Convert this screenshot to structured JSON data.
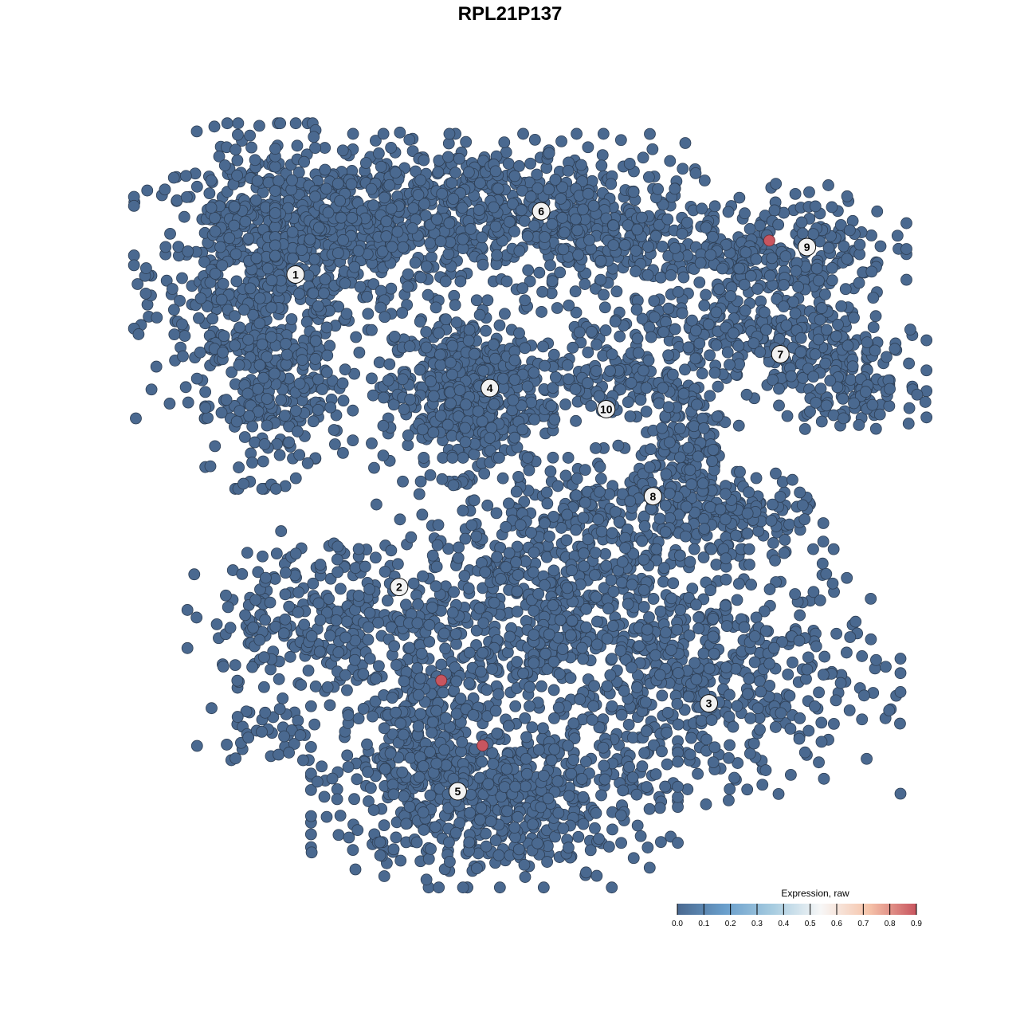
{
  "chart_data": {
    "type": "scatter",
    "title": "RPL21P137",
    "xlabel": "",
    "ylabel": "",
    "axes_visible": false,
    "grid": false,
    "xlim": [
      -40,
      40
    ],
    "ylim": [
      -40,
      40
    ],
    "point_color_low": "#4a6990",
    "point_color_high": "#c8555f",
    "cluster_point_distribution": [
      {
        "cluster": "1",
        "center": [
          -27.0,
          26.1
        ],
        "spread": [
          6.1,
          7.0
        ],
        "n": 600
      },
      {
        "cluster": "1",
        "center": [
          -16.5,
          31.3
        ],
        "spread": [
          7.0,
          4.3
        ],
        "n": 400
      },
      {
        "cluster": "1",
        "center": [
          -25.2,
          12.2
        ],
        "spread": [
          3.5,
          4.3
        ],
        "n": 200
      },
      {
        "cluster": "6",
        "center": [
          -1.7,
          33.0
        ],
        "spread": [
          10.4,
          3.5
        ],
        "n": 500
      },
      {
        "cluster": "6",
        "center": [
          10.4,
          29.6
        ],
        "spread": [
          5.2,
          3.5
        ],
        "n": 200
      },
      {
        "cluster": "4",
        "center": [
          -5.2,
          13.0
        ],
        "spread": [
          4.3,
          4.3
        ],
        "n": 500
      },
      {
        "cluster": "9",
        "center": [
          31.3,
          28.7
        ],
        "spread": [
          5.2,
          3.0
        ],
        "n": 200
      },
      {
        "cluster": "9",
        "center": [
          22.6,
          27.8
        ],
        "spread": [
          2.6,
          1.7
        ],
        "n": 50
      },
      {
        "cluster": "7",
        "center": [
          27.8,
          18.3
        ],
        "spread": [
          7.0,
          3.5
        ],
        "n": 300
      },
      {
        "cluster": "7",
        "center": [
          37.4,
          13.9
        ],
        "spread": [
          3.5,
          2.2
        ],
        "n": 120
      },
      {
        "cluster": "10",
        "center": [
          10.4,
          14.8
        ],
        "spread": [
          4.3,
          3.5
        ],
        "n": 150
      },
      {
        "cluster": "8",
        "center": [
          19.1,
          7.0
        ],
        "spread": [
          2.6,
          4.3
        ],
        "n": 150
      },
      {
        "cluster": "8",
        "center": [
          24.3,
          -0.9
        ],
        "spread": [
          4.3,
          2.2
        ],
        "n": 150
      },
      {
        "cluster": "8",
        "center": [
          12.2,
          0.0
        ],
        "spread": [
          5.2,
          2.2
        ],
        "n": 120
      },
      {
        "cluster": "2",
        "center": [
          -19.1,
          -12.2
        ],
        "spread": [
          7.0,
          4.3
        ],
        "n": 300
      },
      {
        "cluster": "2",
        "center": [
          -26.1,
          -24.3
        ],
        "spread": [
          3.5,
          1.7
        ],
        "n": 40
      },
      {
        "cluster": "5",
        "center": [
          3.5,
          -10.4
        ],
        "spread": [
          8.7,
          7.0
        ],
        "n": 700
      },
      {
        "cluster": "3",
        "center": [
          22.6,
          -18.3
        ],
        "spread": [
          8.7,
          6.1
        ],
        "n": 500
      },
      {
        "cluster": "5",
        "center": [
          -1.7,
          -31.3
        ],
        "spread": [
          8.7,
          4.3
        ],
        "n": 600
      },
      {
        "cluster": "5",
        "center": [
          -9.6,
          -24.3
        ],
        "spread": [
          3.5,
          5.2
        ],
        "n": 200
      }
    ],
    "all_other_expression": 0.0,
    "expressing_points": [
      {
        "x": 28.3,
        "y": 29.4,
        "value": 0.9
      },
      {
        "x": -7.5,
        "y": -18.6,
        "value": 0.9
      },
      {
        "x": -3.0,
        "y": -25.7,
        "value": 0.9
      }
    ],
    "cluster_labels": [
      {
        "label": "1",
        "x": -23.4,
        "y": 25.7
      },
      {
        "label": "2",
        "x": -12.1,
        "y": -8.4
      },
      {
        "label": "3",
        "x": 21.7,
        "y": -21.1
      },
      {
        "label": "4",
        "x": -2.2,
        "y": 13.3
      },
      {
        "label": "5",
        "x": -5.7,
        "y": -30.7
      },
      {
        "label": "6",
        "x": 3.4,
        "y": 32.6
      },
      {
        "label": "7",
        "x": 29.5,
        "y": 17.0
      },
      {
        "label": "8",
        "x": 15.6,
        "y": 1.5
      },
      {
        "label": "9",
        "x": 32.4,
        "y": 28.7
      },
      {
        "label": "10",
        "x": 10.5,
        "y": 11.0
      }
    ],
    "legend": {
      "title": "Expression, raw",
      "placement": "bottom-right",
      "ticks": [
        "0.0",
        "0.1",
        "0.2",
        "0.3",
        "0.4",
        "0.5",
        "0.6",
        "0.7",
        "0.8",
        "0.9"
      ],
      "range": [
        0,
        0.9
      ],
      "colors": [
        "#4a6990",
        "#6a9fcc",
        "#a7cce0",
        "#f7f7f7",
        "#f6c4aa",
        "#c8555f"
      ]
    }
  }
}
